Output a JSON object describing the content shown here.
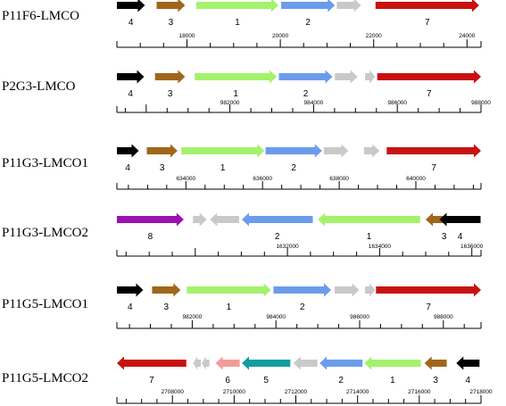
{
  "colors": {
    "1": "#a4f26c",
    "2": "#6b9cec",
    "3": "#a0661c",
    "4": "#000000",
    "5": "#129ca0",
    "6": "#f29c98",
    "7": "#c81212",
    "8": "#9a12b0",
    "grey": "#c9c9c9",
    "axis": "#000000"
  },
  "contigs": [
    {
      "name": "P11F6-LMCO",
      "range": [
        16500,
        24300
      ],
      "genes": [
        {
          "from": 16500,
          "to": 17100,
          "num": "4",
          "color": "4",
          "dir": "+"
        },
        {
          "from": 17350,
          "to": 17960,
          "num": "3",
          "color": "3",
          "dir": "+"
        },
        {
          "from": 18200,
          "to": 19960,
          "num": "1",
          "color": "1",
          "dir": "+"
        },
        {
          "from": 20020,
          "to": 21170,
          "num": "2",
          "color": "2",
          "dir": "+"
        },
        {
          "from": 21210,
          "to": 21730,
          "num": "",
          "color": "grey",
          "dir": "+"
        },
        {
          "from": 22040,
          "to": 24260,
          "num": "7",
          "color": "7",
          "dir": "+"
        }
      ],
      "ticks": {
        "start": 16500,
        "end": 24300,
        "minor": 500,
        "major": 2000
      },
      "tick_labels": [
        "18000",
        "20000",
        "22000",
        "24000"
      ]
    },
    {
      "name": "P2G3-LMCO",
      "range": [
        979300,
        988000
      ],
      "genes": [
        {
          "from": 979300,
          "to": 979950,
          "num": "4",
          "color": "4",
          "dir": "+"
        },
        {
          "from": 980210,
          "to": 980930,
          "num": "3",
          "color": "3",
          "dir": "+"
        },
        {
          "from": 981160,
          "to": 983120,
          "num": "1",
          "color": "1",
          "dir": "+"
        },
        {
          "from": 983170,
          "to": 984450,
          "num": "2",
          "color": "2",
          "dir": "+"
        },
        {
          "from": 984510,
          "to": 985050,
          "num": "",
          "color": "grey",
          "dir": "+"
        },
        {
          "from": 985230,
          "to": 985470,
          "num": "",
          "color": "grey",
          "dir": "+"
        },
        {
          "from": 985520,
          "to": 988000,
          "num": "7",
          "color": "7",
          "dir": "+"
        }
      ],
      "ticks": {
        "start": 979300,
        "end": 988000,
        "minor": 500,
        "major": 2000
      },
      "tick_labels": [
        "982000",
        "984000",
        "986000",
        "988000"
      ]
    },
    {
      "name": "P11G3-LMCO1",
      "range": [
        632200,
        641700
      ],
      "genes": [
        {
          "from": 632200,
          "to": 632770,
          "num": "4",
          "color": "4",
          "dir": "+"
        },
        {
          "from": 632980,
          "to": 633780,
          "num": "3",
          "color": "3",
          "dir": "+"
        },
        {
          "from": 633880,
          "to": 636050,
          "num": "1",
          "color": "1",
          "dir": "+"
        },
        {
          "from": 636080,
          "to": 637550,
          "num": "2",
          "color": "2",
          "dir": "+"
        },
        {
          "from": 637600,
          "to": 638240,
          "num": "",
          "color": "grey",
          "dir": "+"
        },
        {
          "from": 638650,
          "to": 639050,
          "num": "",
          "color": "grey",
          "dir": "+"
        },
        {
          "from": 639240,
          "to": 641700,
          "num": "7",
          "color": "7",
          "dir": "+"
        }
      ],
      "ticks": {
        "start": 632200,
        "end": 641700,
        "minor": 500,
        "major": 2000
      },
      "tick_labels": [
        "634000",
        "636000",
        "638000",
        "640000"
      ]
    },
    {
      "name": "P11G3-LMCO2",
      "range": [
        1628300,
        1636200
      ],
      "genes": [
        {
          "from": 1628300,
          "to": 1629750,
          "num": "8",
          "color": "8",
          "dir": "+"
        },
        {
          "from": 1629950,
          "to": 1630250,
          "num": "",
          "color": "grey",
          "dir": "+"
        },
        {
          "from": 1630320,
          "to": 1630950,
          "num": "",
          "color": "grey",
          "dir": "-"
        },
        {
          "from": 1631010,
          "to": 1632550,
          "num": "2",
          "color": "2",
          "dir": "-"
        },
        {
          "from": 1632660,
          "to": 1634880,
          "num": "1",
          "color": "1",
          "dir": "-"
        },
        {
          "from": 1635000,
          "to": 1635800,
          "num": "3",
          "color": "3",
          "dir": "-"
        },
        {
          "from": 1635300,
          "to": 1636190,
          "num": "4",
          "color": "4",
          "dir": "-"
        }
      ],
      "ticks": {
        "start": 1628300,
        "end": 1636200,
        "minor": 500,
        "major": 2000
      },
      "tick_labels": [
        "1632000",
        "1634000",
        "1636000"
      ]
    },
    {
      "name": "P11G5-LMCO1",
      "range": [
        980200,
        988900
      ],
      "genes": [
        {
          "from": 980200,
          "to": 980830,
          "num": "4",
          "color": "4",
          "dir": "+"
        },
        {
          "from": 981040,
          "to": 981720,
          "num": "3",
          "color": "3",
          "dir": "+"
        },
        {
          "from": 981870,
          "to": 983880,
          "num": "1",
          "color": "1",
          "dir": "+"
        },
        {
          "from": 983940,
          "to": 985320,
          "num": "2",
          "color": "2",
          "dir": "+"
        },
        {
          "from": 985400,
          "to": 985990,
          "num": "",
          "color": "grey",
          "dir": "+"
        },
        {
          "from": 986130,
          "to": 986370,
          "num": "",
          "color": "grey",
          "dir": "+"
        },
        {
          "from": 986390,
          "to": 988900,
          "num": "7",
          "color": "7",
          "dir": "+"
        }
      ],
      "ticks": {
        "start": 980200,
        "end": 988900,
        "minor": 500,
        "major": 2000
      },
      "tick_labels": [
        "982000",
        "984000",
        "986000",
        "988000"
      ]
    },
    {
      "name": "P11G5-LMCO2",
      "range": [
        2706200,
        2718000
      ],
      "genes": [
        {
          "from": 2706200,
          "to": 2708450,
          "num": "7",
          "color": "7",
          "dir": "-"
        },
        {
          "from": 2708670,
          "to": 2708920,
          "num": "",
          "color": "grey",
          "dir": "-"
        },
        {
          "from": 2708950,
          "to": 2709200,
          "num": "",
          "color": "grey",
          "dir": "-"
        },
        {
          "from": 2709400,
          "to": 2710180,
          "num": "6",
          "color": "6",
          "dir": "-"
        },
        {
          "from": 2710250,
          "to": 2711820,
          "num": "5",
          "color": "5",
          "dir": "-"
        },
        {
          "from": 2711920,
          "to": 2712700,
          "num": "",
          "color": "grey",
          "dir": "-"
        },
        {
          "from": 2712770,
          "to": 2714160,
          "num": "2",
          "color": "2",
          "dir": "-"
        },
        {
          "from": 2714220,
          "to": 2716050,
          "num": "1",
          "color": "1",
          "dir": "-"
        },
        {
          "from": 2716170,
          "to": 2716890,
          "num": "3",
          "color": "3",
          "dir": "-"
        },
        {
          "from": 2717200,
          "to": 2717950,
          "num": "4",
          "color": "4",
          "dir": "-"
        }
      ],
      "ticks": {
        "start": 2706200,
        "end": 2718000,
        "minor": 500,
        "major": 2000
      },
      "tick_labels": [
        "2708000",
        "2710000",
        "2712000",
        "2714000",
        "2716000",
        "2718000"
      ]
    }
  ]
}
